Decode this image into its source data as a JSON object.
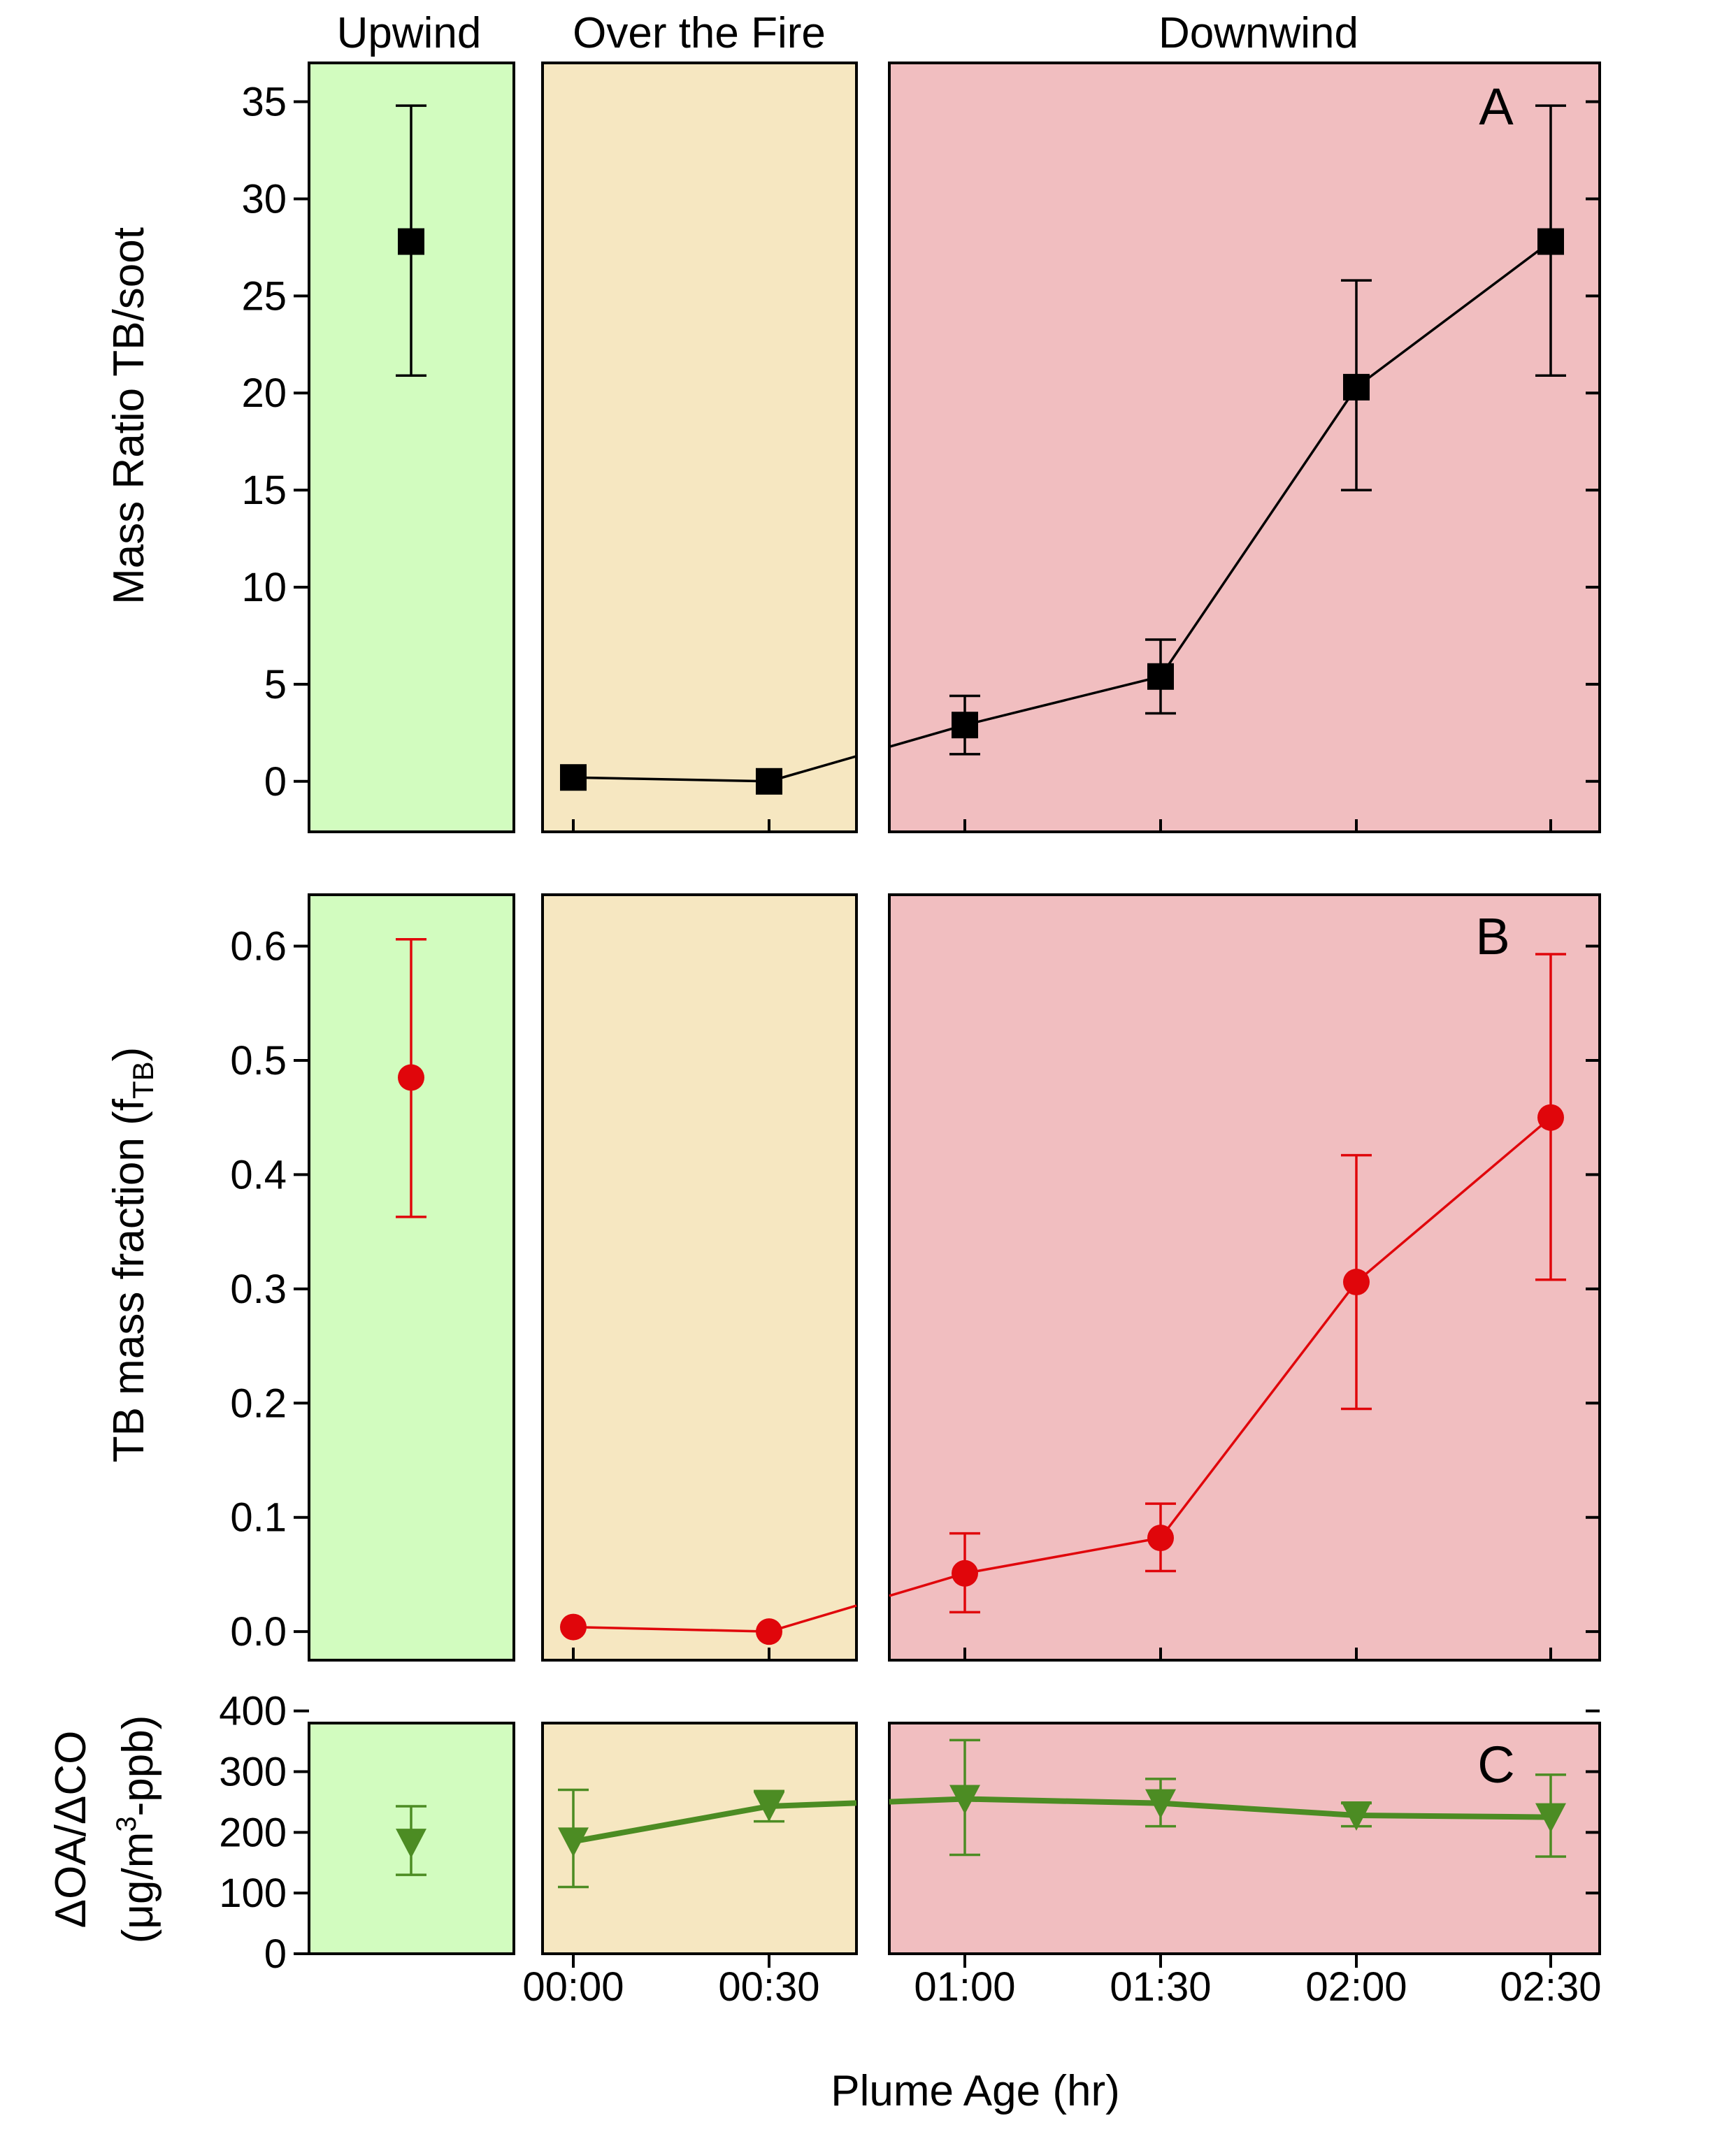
{
  "colors": {
    "upwind": "#d2fcbf",
    "over_fire": "#f6e7c1",
    "downwind": "#f1bec0",
    "series_a": "#000000",
    "series_b": "#e0060b",
    "series_c": "#4c8c23"
  },
  "regions": [
    {
      "name": "Upwind"
    },
    {
      "name": "Over the Fire"
    },
    {
      "name": "Downwind"
    }
  ],
  "x_label": "Plume Age (hr)",
  "chart_data": [
    {
      "panel": "A",
      "type": "line",
      "ylabel": "Mass Ratio TB/soot",
      "ylim": [
        -2.6,
        37
      ],
      "yticks": [
        "0",
        "5",
        "10",
        "15",
        "20",
        "25",
        "30",
        "35"
      ],
      "xticks": [
        "00:00",
        "00:30",
        "01:00",
        "01:30",
        "02:00",
        "02:30"
      ],
      "marker": "square",
      "upwind_point": {
        "y": 27.8,
        "lo": 20.9,
        "hi": 34.8
      },
      "points": [
        {
          "x": "00:00",
          "y": 0.2
        },
        {
          "x": "00:30",
          "y": 0.0
        },
        {
          "x": "01:00",
          "y": 2.9,
          "lo": 1.4,
          "hi": 4.4
        },
        {
          "x": "01:30",
          "y": 5.4,
          "lo": 3.5,
          "hi": 7.3
        },
        {
          "x": "02:00",
          "y": 20.3,
          "lo": 15.0,
          "hi": 25.8
        },
        {
          "x": "02:30",
          "y": 27.8,
          "lo": 20.9,
          "hi": 34.8
        }
      ]
    },
    {
      "panel": "B",
      "type": "line",
      "ylabel": "TB mass fraction (f",
      "ylabel_sub": "TB",
      "ylabel_end": ")",
      "ylim": [
        -0.025,
        0.645
      ],
      "yticks": [
        "0.0",
        "0.1",
        "0.2",
        "0.3",
        "0.4",
        "0.5",
        "0.6"
      ],
      "marker": "circle",
      "upwind_point": {
        "y": 0.485,
        "lo": 0.363,
        "hi": 0.606
      },
      "points": [
        {
          "x": "00:00",
          "y": 0.004
        },
        {
          "x": "00:30",
          "y": 0.0
        },
        {
          "x": "01:00",
          "y": 0.051,
          "lo": 0.017,
          "hi": 0.086
        },
        {
          "x": "01:30",
          "y": 0.082,
          "lo": 0.053,
          "hi": 0.112
        },
        {
          "x": "02:00",
          "y": 0.306,
          "lo": 0.195,
          "hi": 0.417
        },
        {
          "x": "02:30",
          "y": 0.45,
          "lo": 0.308,
          "hi": 0.593
        }
      ]
    },
    {
      "panel": "C",
      "type": "line",
      "ylabel_line1": "ΔOA/ΔCO",
      "ylabel_line2_pre": "(μg/m",
      "ylabel_line2_sup": "3",
      "ylabel_line2_post": "-ppb)",
      "ylim": [
        0,
        380
      ],
      "yticks": [
        "0",
        "100",
        "200",
        "300",
        "400"
      ],
      "marker": "triangle-down",
      "upwind_point": {
        "y": 183,
        "lo": 130,
        "hi": 243
      },
      "points": [
        {
          "x": "00:00",
          "y": 185,
          "lo": 110,
          "hi": 270
        },
        {
          "x": "00:30",
          "y": 243,
          "lo": 218,
          "hi": 268
        },
        {
          "x": "01:00",
          "y": 255,
          "lo": 163,
          "hi": 352
        },
        {
          "x": "01:30",
          "y": 248,
          "lo": 210,
          "hi": 288
        },
        {
          "x": "02:00",
          "y": 228,
          "lo": 210,
          "hi": 248
        },
        {
          "x": "02:30",
          "y": 225,
          "lo": 160,
          "hi": 295
        }
      ]
    }
  ]
}
